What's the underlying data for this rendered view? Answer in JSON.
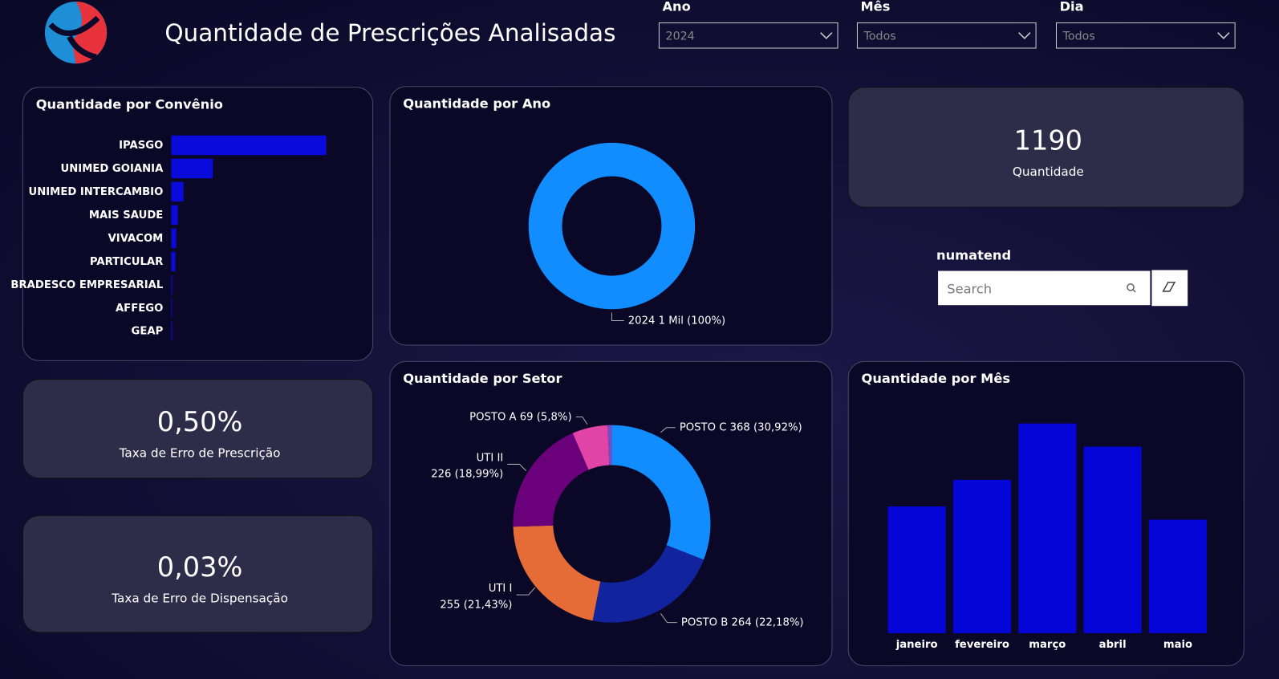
{
  "header": {
    "title": "Quantidade de Prescrições Analisadas"
  },
  "filters": [
    {
      "label": "Ano",
      "value": "2024"
    },
    {
      "label": "Mês",
      "value": "Todos"
    },
    {
      "label": "Dia",
      "value": "Todos"
    }
  ],
  "kpis": [
    {
      "value": "1190",
      "label": "Quantidade"
    },
    {
      "value": "0,50%",
      "label": "Taxa de Erro de Prescrição"
    },
    {
      "value": "0,03%",
      "label": "Taxa de Erro de Dispensação"
    }
  ],
  "search": {
    "label": "numatend",
    "placeholder": "Search"
  },
  "chart_data": [
    {
      "type": "hbar",
      "title": "Quantidade por Convênio",
      "color": "#0a0adc",
      "categories": [
        "IPASGO",
        "UNIMED GOIANIA",
        "UNIMED INTERCAMBIO",
        "MAIS SAUDE",
        "VIVACOM",
        "PARTICULAR",
        "BRADESCO EMPRESARIAL",
        "AFFEGO",
        "GEAP"
      ],
      "values": [
        813,
        218,
        64,
        34,
        26,
        21,
        5,
        4,
        5
      ]
    },
    {
      "type": "donut",
      "title": "Quantidade por Ano",
      "categories": [
        "2024"
      ],
      "values": [
        1190
      ],
      "value_labels": [
        "1 Mil (100%)"
      ],
      "colors": [
        "#118dff"
      ]
    },
    {
      "type": "donut",
      "title": "Quantidade por Setor",
      "categories": [
        "POSTO C",
        "POSTO B",
        "UTI I",
        "UTI II",
        "POSTO A",
        null
      ],
      "values": [
        368,
        264,
        255,
        226,
        69,
        8
      ],
      "value_labels": [
        "368 (30,92%)",
        "264 (22,18%)",
        "255 (21,43%)",
        "226 (18,99%)",
        "69 (5,8%)",
        null
      ],
      "colors": [
        "#118dff",
        "#12239e",
        "#e66c37",
        "#6b007b",
        "#e044a7",
        "#744ec2"
      ]
    },
    {
      "type": "bar",
      "title": "Quantidade por Mês",
      "color": "#0505d8",
      "categories": [
        "janeiro",
        "fevereiro",
        "março",
        "abril",
        "maio"
      ],
      "values": [
        191,
        231,
        316,
        281,
        171
      ]
    }
  ]
}
